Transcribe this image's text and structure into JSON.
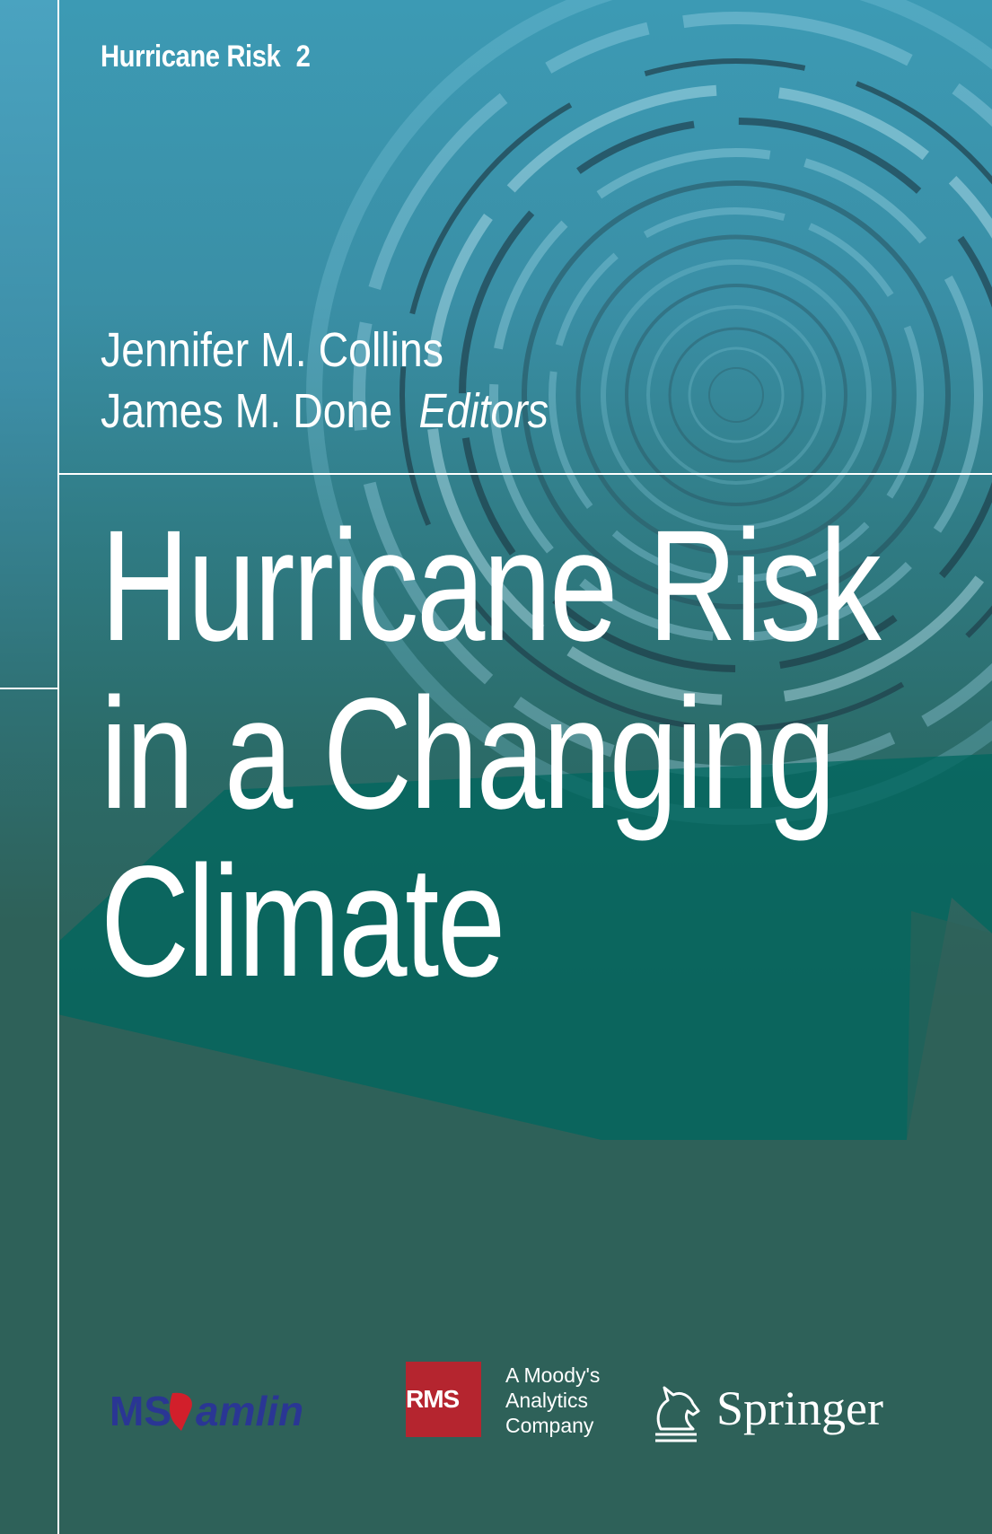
{
  "series": {
    "name": "Hurricane Risk",
    "volume": "2"
  },
  "editors": {
    "names": [
      "Jennifer M. Collins",
      "James M. Done"
    ],
    "role": "Editors"
  },
  "title": {
    "lines": [
      "Hurricane Risk",
      "in a Changing",
      "Climate"
    ]
  },
  "logos": {
    "amlin": "MS amlin",
    "rms": "RMS",
    "moodys": [
      "A Moody's",
      "Analytics",
      "Company"
    ],
    "springer": "Springer"
  },
  "colors": {
    "background": "#2e6159",
    "sky": "#3c9ab4",
    "teal_panel": "#00675f",
    "rms_red": "#b5252f",
    "amlin_blue": "#2a3694",
    "amlin_red": "#d21f2b"
  }
}
